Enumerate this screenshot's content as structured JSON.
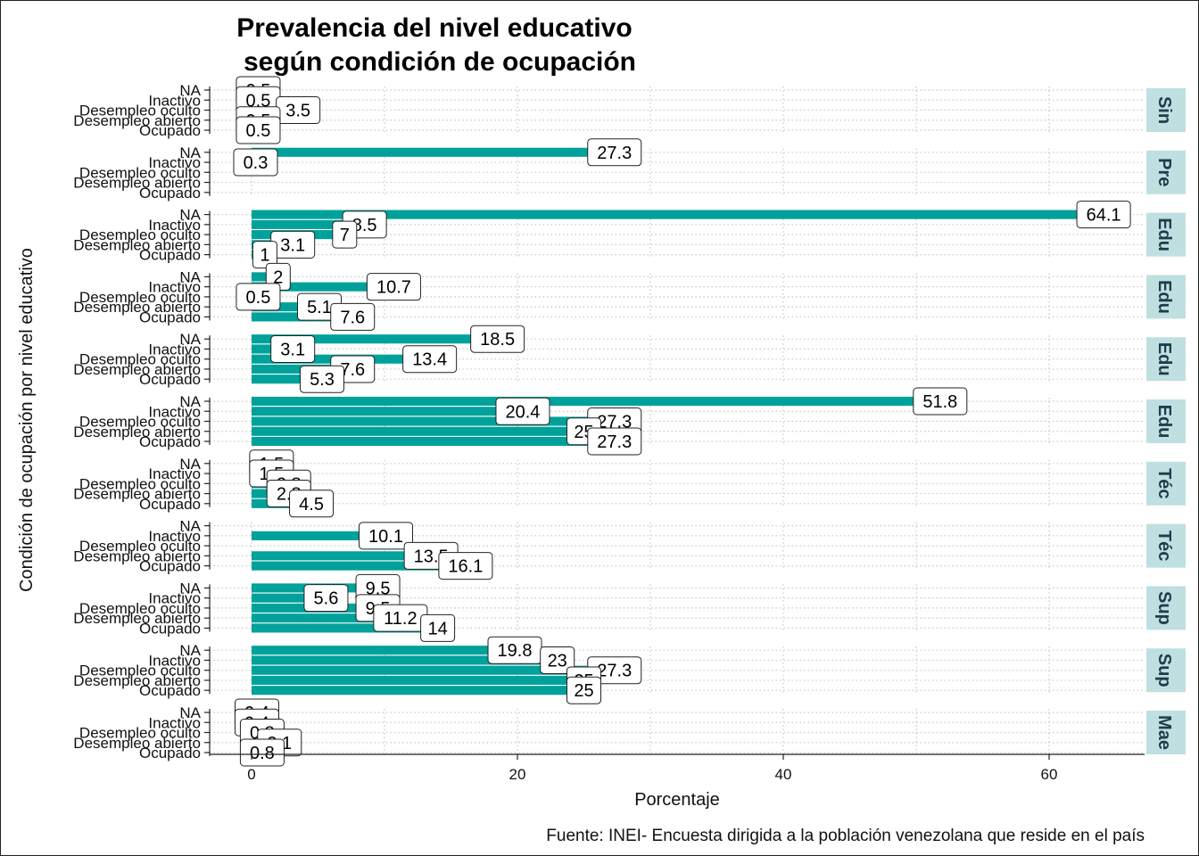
{
  "chart_data": {
    "type": "bar",
    "title_lines": [
      "Prevalencia del nivel educativo",
      "según condición de ocupación"
    ],
    "xlabel": "Porcentaje",
    "ylabel": "Condición de ocupación por nivel educativo",
    "caption": "Fuente: INEI- Encuesta dirigida a la población venezolana que reside en el país",
    "xlim": [
      -4,
      67
    ],
    "xticks": [
      0,
      20,
      40,
      60
    ],
    "xtick_labels": [
      "0",
      "20",
      "40",
      "60"
    ],
    "grid": "dotted",
    "bar_color": "#00A19B",
    "strip_color": "#BFDFE0",
    "categories": [
      "NA",
      "Inactivo",
      "Desempleo oculto",
      "Desempleo abierto",
      "Ocupado"
    ],
    "facets": [
      {
        "strip": "Sin",
        "values": [
          0.5,
          0.5,
          3.5,
          0.5,
          0.5
        ],
        "labels": [
          "0.5",
          "0.5",
          "3.5",
          "0.5",
          "0.5"
        ]
      },
      {
        "strip": "Pre",
        "values": [
          27.3,
          0.3,
          0,
          0,
          0
        ],
        "labels": [
          "27.3",
          "0.3",
          "",
          "",
          ""
        ]
      },
      {
        "strip": "Edu",
        "values": [
          64.1,
          8.5,
          7,
          3.1,
          1
        ],
        "labels": [
          "64.1",
          "8.5",
          "7",
          "3.1",
          "1"
        ]
      },
      {
        "strip": "Edu",
        "values": [
          2,
          10.7,
          0.5,
          5.1,
          7.6
        ],
        "labels": [
          "2",
          "10.7",
          "0.5",
          "5.1",
          "7.6"
        ]
      },
      {
        "strip": "Edu",
        "values": [
          18.5,
          3.1,
          13.4,
          7.6,
          5.3
        ],
        "labels": [
          "18.5",
          "3.1",
          "13.4",
          "7.6",
          "5.3"
        ]
      },
      {
        "strip": "Edu",
        "values": [
          51.8,
          20.4,
          27.3,
          25,
          27.3
        ],
        "labels": [
          "51.8",
          "20.4",
          "27.3",
          "25",
          "27.3"
        ]
      },
      {
        "strip": "Téc",
        "values": [
          1.5,
          1.5,
          2.8,
          2.8,
          4.5
        ],
        "labels": [
          "1.5",
          "1.5",
          "2.8",
          "2.8",
          "4.5"
        ]
      },
      {
        "strip": "Téc",
        "values": [
          0,
          10.1,
          0,
          13.5,
          16.1
        ],
        "labels": [
          "",
          "10.1",
          "",
          "13.5",
          "16.1"
        ]
      },
      {
        "strip": "Sup",
        "values": [
          9.5,
          5.6,
          9.5,
          11.2,
          14
        ],
        "labels": [
          "9.5",
          "5.6",
          "9.5",
          "11.2",
          "14"
        ]
      },
      {
        "strip": "Sup",
        "values": [
          19.8,
          23,
          27.3,
          25,
          25
        ],
        "labels": [
          "19.8",
          "23",
          "27.3",
          "25",
          "25"
        ]
      },
      {
        "strip": "Mae",
        "values": [
          0.4,
          0.4,
          0.8,
          2.1,
          0.8
        ],
        "labels": [
          "0.4",
          "0.4",
          "0.8",
          "2.1",
          "0.8"
        ]
      }
    ]
  }
}
